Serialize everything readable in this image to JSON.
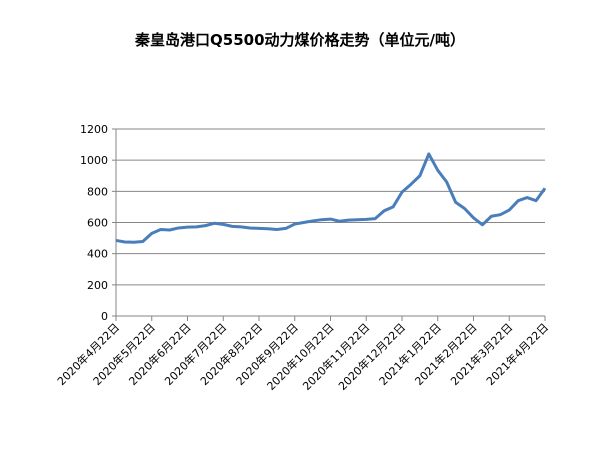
{
  "chart_data": {
    "type": "line",
    "title": "秦皇岛港口Q5500动力煤价格走势（单位元/吨）",
    "categories": [
      "2020年4月22日",
      null,
      null,
      null,
      "2020年5月22日",
      null,
      null,
      null,
      "2020年6月22日",
      null,
      null,
      null,
      "2020年7月22日",
      null,
      null,
      null,
      "2020年8月22日",
      null,
      null,
      null,
      "2020年9月22日",
      null,
      null,
      null,
      "2020年10月22日",
      null,
      null,
      null,
      "2020年11月22日",
      null,
      null,
      null,
      "2020年12月22日",
      null,
      null,
      null,
      "2021年1月22日",
      null,
      null,
      null,
      "2021年2月22日",
      null,
      null,
      null,
      "2021年3月22日",
      null,
      null,
      null,
      "2021年4月22日"
    ],
    "series": [
      {
        "color": "#4a7ebb",
        "values": [
          485,
          475,
          473,
          478,
          530,
          555,
          552,
          565,
          570,
          572,
          580,
          595,
          588,
          575,
          572,
          565,
          562,
          560,
          555,
          562,
          590,
          600,
          610,
          618,
          622,
          608,
          615,
          618,
          620,
          625,
          675,
          700,
          795,
          845,
          900,
          1040,
          935,
          860,
          730,
          690,
          630,
          585,
          640,
          650,
          680,
          740,
          760,
          740,
          820
        ]
      }
    ],
    "ylim": [
      0,
      1200
    ],
    "yticks": [
      0,
      200,
      400,
      600,
      800,
      1000,
      1200
    ],
    "grid": true
  }
}
